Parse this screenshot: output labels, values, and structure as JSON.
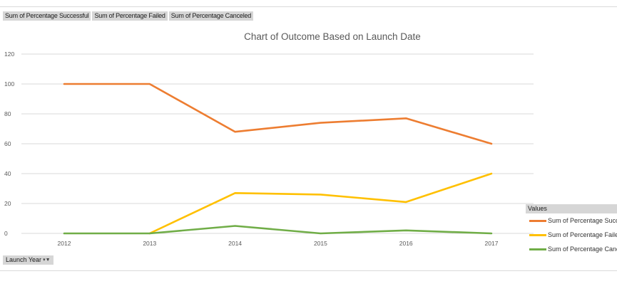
{
  "field_buttons": [
    "Sum of Percentage Successful",
    "Sum of Percentage Failed",
    "Sum of Percentage Canceled"
  ],
  "axis_field": {
    "label": "Launch Year",
    "icon": "filter-dropdown-icon"
  },
  "legend": {
    "title": "Values",
    "items": [
      {
        "label": "Sum of Percentage Successful",
        "color": "#ED7D31"
      },
      {
        "label": "Sum of Percentage Failed",
        "color": "#FFC000"
      },
      {
        "label": "Sum of Percentage Canceled",
        "color": "#70AD47"
      }
    ]
  },
  "chart_data": {
    "type": "line",
    "title": "Chart of Outcome Based on Launch Date",
    "categories": [
      "2012",
      "2013",
      "2014",
      "2015",
      "2016",
      "2017"
    ],
    "ylim": [
      0,
      120
    ],
    "yticks": [
      0,
      20,
      40,
      60,
      80,
      100,
      120
    ],
    "grid": true,
    "legend_position": "right",
    "series": [
      {
        "name": "Sum of Percentage Successful",
        "color": "#ED7D31",
        "values": [
          100,
          100,
          68,
          74,
          77,
          60
        ]
      },
      {
        "name": "Sum of Percentage Failed",
        "color": "#FFC000",
        "values": [
          null,
          0,
          27,
          26,
          21,
          40
        ]
      },
      {
        "name": "Sum of Percentage Canceled",
        "color": "#70AD47",
        "values": [
          0,
          0,
          5,
          0,
          2,
          0
        ]
      }
    ]
  }
}
